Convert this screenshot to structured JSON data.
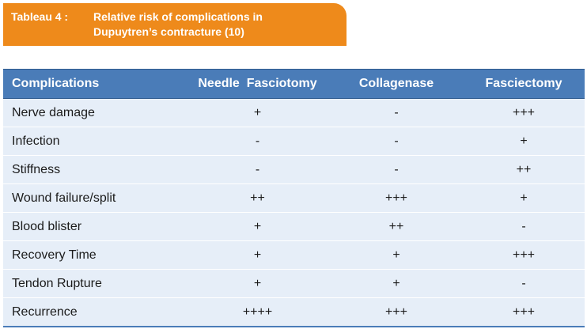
{
  "caption": {
    "number": "Tableau 4 :",
    "title_line1": "Relative risk of complications in",
    "title_line2": "Dupuytren’s contracture (10)"
  },
  "table": {
    "headers": [
      "Complications",
      "Needle  Fasciotomy",
      "Collagenase",
      "Fasciectomy"
    ],
    "rows": [
      [
        "Nerve damage",
        "+",
        "-",
        "+++"
      ],
      [
        "Infection",
        "-",
        "-",
        "+"
      ],
      [
        "Stiffness",
        "-",
        "-",
        "++"
      ],
      [
        "Wound failure/split",
        "++",
        "+++",
        "+"
      ],
      [
        "Blood blister",
        "+",
        "++",
        "-"
      ],
      [
        "Recovery Time",
        "+",
        "+",
        "+++"
      ],
      [
        "Tendon Rupture",
        "+",
        "+",
        "-"
      ],
      [
        "Recurrence",
        "++++",
        "+++",
        "+++"
      ]
    ]
  },
  "colors": {
    "caption_bg": "#ee8a1b",
    "header_bg": "#4a7cb8",
    "row_bg": "#e6eef8"
  }
}
